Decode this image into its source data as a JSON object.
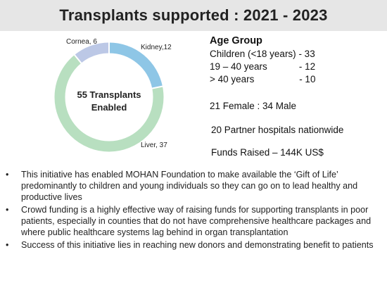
{
  "title": "Transplants supported : 2021 - 2023",
  "chart_data": {
    "type": "pie",
    "categories": [
      "Kidney",
      "Liver",
      "Cornea"
    ],
    "values": [
      12,
      37,
      6
    ],
    "colors": [
      "#8ec6e6",
      "#b8dfc0",
      "#bcc8e6"
    ],
    "slice_labels": [
      "Kidney,12",
      "Liver, 37",
      "Cornea, 6"
    ],
    "center_label_line1": "55 Transplants",
    "center_label_line2": "Enabled"
  },
  "stats": {
    "age_heading": "Age Group",
    "age_rows": [
      {
        "label": "Children (<18 years) ",
        "value": "- 33"
      },
      {
        "label": "19 – 40 years            ",
        "value": "- 12"
      },
      {
        "label": "> 40 years                 ",
        "value": "- 10"
      }
    ],
    "gender": "21 Female : 34 Male",
    "partners": "20 Partner hospitals nationwide",
    "funds": "Funds Raised – 144K US$"
  },
  "bullets": [
    "This initiative has enabled MOHAN Foundation to make available the ‘Gift of Life’ predominantly to children and young individuals so they can go on to lead healthy and productive lives",
    "Crowd funding is a highly effective way of raising funds for supporting transplants in poor patients, especially in counties that do not have comprehensive healthcare packages and where public healthcare systems lag behind in organ transplantation",
    "Success of this initiative lies in reaching new donors and demonstrating benefit to patients"
  ],
  "bullet_symbol": "•"
}
